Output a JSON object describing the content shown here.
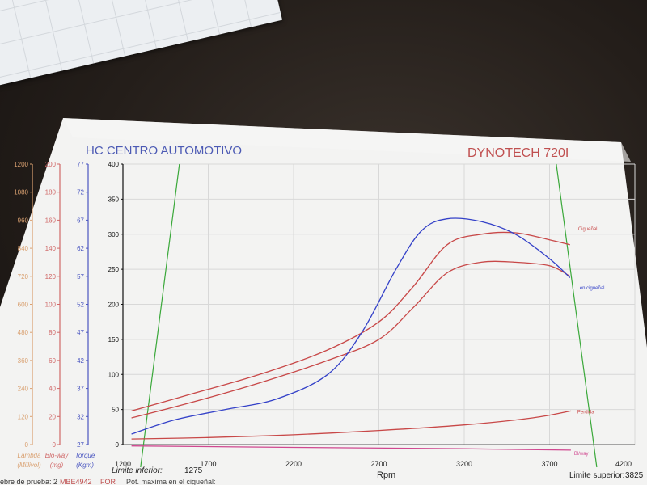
{
  "header": {
    "title_left": "HC CENTRO AUTOMOTIVO",
    "title_right": "DYNOTECH 720I"
  },
  "footer": {
    "limit_inferior_label": "Limite inferior:",
    "limit_inferior_value": "1275",
    "limit_superior_label": "Limite superior:",
    "limit_superior_value": "3825",
    "bottom_text_1": "ebre de prueba: 2",
    "bottom_text_2": "MBE4942",
    "bottom_text_3": "FOR",
    "bottom_text_4": "Pot. maxima en el cigueñal:"
  },
  "colors": {
    "lambda": "#d9a070",
    "blow": "#d06868",
    "torque": "#4a56c0",
    "power": "#111111",
    "red_curve": "#c84848",
    "blue_curve": "#3340c8",
    "limit_line": "#3aa83a",
    "magenta": "#d04890"
  },
  "chart_data": {
    "type": "line",
    "xlabel": "Rpm",
    "x_ticks": [
      "1200",
      "1700",
      "2200",
      "2700",
      "3200",
      "3700",
      "4200"
    ],
    "xlim": [
      1200,
      4200
    ],
    "ylim": [
      0,
      400
    ],
    "axes": [
      {
        "key": "lambda",
        "ticks": [
          "0",
          "120",
          "240",
          "360",
          "480",
          "600",
          "720",
          "840",
          "960",
          "1080",
          "1200"
        ],
        "label": "Lambda",
        "unit": "(Millivol)"
      },
      {
        "key": "blow",
        "ticks": [
          "0",
          "20",
          "40",
          "60",
          "80",
          "100",
          "120",
          "140",
          "160",
          "180",
          "200"
        ],
        "label": "Blo-way",
        "unit": "(mg)"
      },
      {
        "key": "torque",
        "ticks": [
          "27",
          "32",
          "37",
          "42",
          "47",
          "52",
          "57",
          "62",
          "67",
          "72",
          "77"
        ],
        "label": "Torque",
        "unit": "(Kgm)"
      },
      {
        "key": "power",
        "ticks": [
          "0",
          "50",
          "100",
          "150",
          "200",
          "250",
          "300",
          "350",
          "400"
        ],
        "label": "",
        "unit": ""
      }
    ],
    "limits": [
      1275,
      3825
    ],
    "series": [
      {
        "name": "Cigueñal",
        "color_key": "red_curve",
        "points": [
          [
            1250,
            48
          ],
          [
            1600,
            72
          ],
          [
            2000,
            100
          ],
          [
            2400,
            135
          ],
          [
            2700,
            175
          ],
          [
            2900,
            225
          ],
          [
            3100,
            285
          ],
          [
            3300,
            300
          ],
          [
            3500,
            302
          ],
          [
            3700,
            292
          ],
          [
            3820,
            285
          ]
        ]
      },
      {
        "name": "en cigueñal",
        "color_key": "red_curve",
        "points": [
          [
            1250,
            38
          ],
          [
            1600,
            60
          ],
          [
            2000,
            88
          ],
          [
            2400,
            120
          ],
          [
            2700,
            150
          ],
          [
            2900,
            195
          ],
          [
            3100,
            245
          ],
          [
            3300,
            260
          ],
          [
            3500,
            260
          ],
          [
            3700,
            255
          ],
          [
            3820,
            240
          ]
        ]
      },
      {
        "name": "Torque",
        "color_key": "blue_curve",
        "points": [
          [
            1250,
            15
          ],
          [
            1500,
            35
          ],
          [
            1800,
            50
          ],
          [
            2100,
            65
          ],
          [
            2400,
            100
          ],
          [
            2600,
            160
          ],
          [
            2800,
            250
          ],
          [
            2950,
            305
          ],
          [
            3100,
            322
          ],
          [
            3300,
            318
          ],
          [
            3500,
            300
          ],
          [
            3700,
            265
          ],
          [
            3820,
            238
          ]
        ]
      },
      {
        "name": "Perdida",
        "color_key": "red_curve",
        "points": [
          [
            1250,
            8
          ],
          [
            1700,
            10
          ],
          [
            2200,
            14
          ],
          [
            2700,
            20
          ],
          [
            3200,
            28
          ],
          [
            3600,
            38
          ],
          [
            3825,
            48
          ]
        ]
      },
      {
        "name": "Bl/way",
        "color_key": "magenta",
        "points": [
          [
            1250,
            -2
          ],
          [
            2200,
            -4
          ],
          [
            3200,
            -6
          ],
          [
            3825,
            -8
          ]
        ]
      }
    ],
    "annotations": [
      "Cigueñal",
      "Perdida",
      "Bl/way"
    ]
  }
}
